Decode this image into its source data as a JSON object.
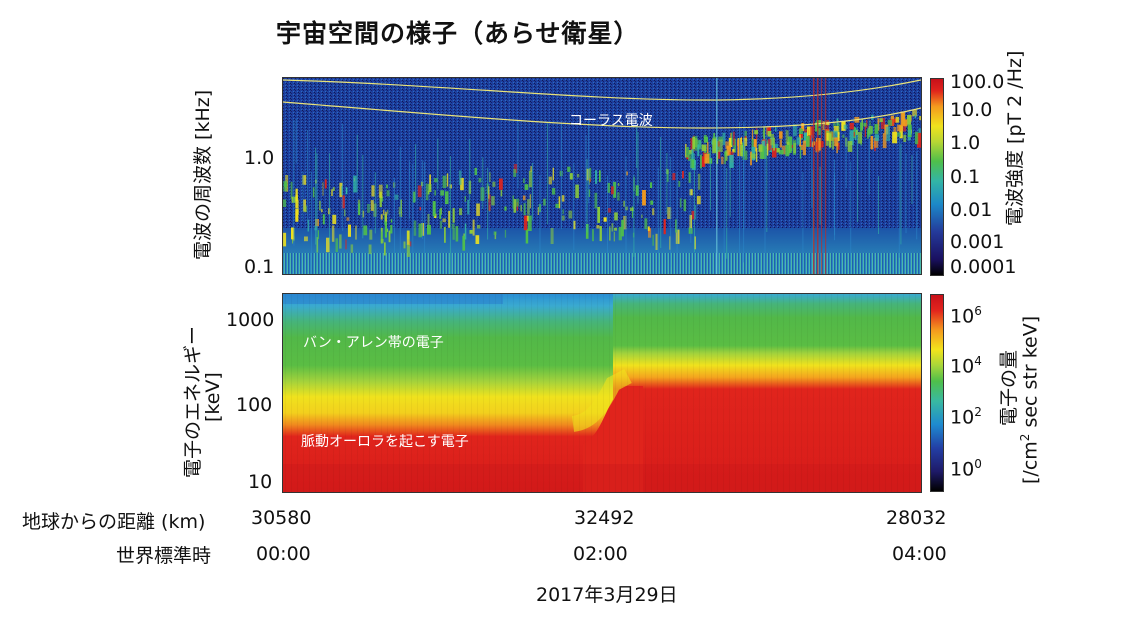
{
  "title": "宇宙空間の様子（あらせ衛星）",
  "chart_data": [
    {
      "type": "heatmap",
      "name": "spectrogram",
      "ylabel": "電波の周波数 [kHz]",
      "yscale": "log",
      "yticks": [
        "1.0",
        "0.1"
      ],
      "annotation": "コーラス電波",
      "colorbar_label": "電波強度 [pT 2 /Hz]",
      "colorbar_ticks": [
        "100.0",
        "10.0",
        "1.0",
        "0.1",
        "0.01",
        "0.001",
        "0.0001"
      ]
    },
    {
      "type": "heatmap",
      "name": "electron-flux",
      "ylabel_line1": "電子のエネルギー",
      "ylabel_line2": "[keV]",
      "yscale": "log",
      "yticks": [
        "1000",
        "100",
        "10"
      ],
      "annotations": [
        "バン・アレン帯の電子",
        "脈動オーロラを起こす電子"
      ],
      "colorbar_label_line1": "電子の量",
      "colorbar_label_line2_a": "[/cm",
      "colorbar_label_line2_sup": "2",
      "colorbar_label_line2_b": " sec str keV]",
      "colorbar_ticks": [
        {
          "base": "10",
          "exp": "6"
        },
        {
          "base": "10",
          "exp": "4"
        },
        {
          "base": "10",
          "exp": "2"
        },
        {
          "base": "10",
          "exp": "0"
        }
      ]
    }
  ],
  "x_axis": {
    "distance_label": "地球からの距離 (km)",
    "distance_values": [
      "30580",
      "32492",
      "28032"
    ],
    "time_label": "世界標準時",
    "time_values": [
      "00:00",
      "02:00",
      "04:00"
    ],
    "date": "2017年3月29日"
  },
  "colors": {
    "spectrogram_bg": "#1d3f9e",
    "flux_red": "#e0241c",
    "flux_yellow": "#f0e21d",
    "flux_green": "#52b848",
    "flux_blue": "#2a9ad8"
  }
}
